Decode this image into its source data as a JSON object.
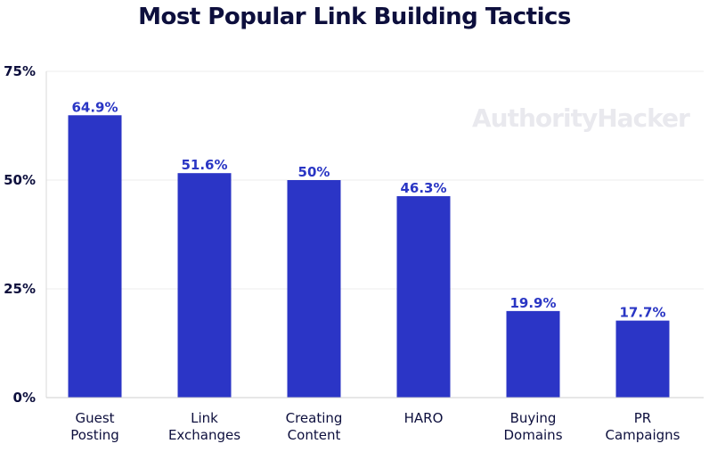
{
  "watermark": "AuthorityHacker",
  "colors": {
    "bar": "#2b35c6",
    "label": "#2a36c4",
    "text": "#0d0f3d",
    "grid": "#ececec"
  },
  "chart_data": {
    "type": "bar",
    "title": "Most Popular Link Building Tactics",
    "categories": [
      [
        "Guest",
        "Posting"
      ],
      [
        "Link",
        "Exchanges"
      ],
      [
        "Creating",
        "Content"
      ],
      [
        "HARO"
      ],
      [
        "Buying",
        "Domains"
      ],
      [
        "PR",
        "Campaigns"
      ]
    ],
    "values": [
      64.9,
      51.6,
      50,
      46.3,
      19.9,
      17.7
    ],
    "data_labels": [
      "64.9%",
      "51.6%",
      "50%",
      "46.3%",
      "19.9%",
      "17.7%"
    ],
    "yticks": [
      0,
      25,
      50,
      75
    ],
    "ytick_labels": [
      "0%",
      "25%",
      "50%",
      "75%"
    ],
    "ylim": [
      0,
      75
    ],
    "grid": true,
    "legend": "none"
  }
}
